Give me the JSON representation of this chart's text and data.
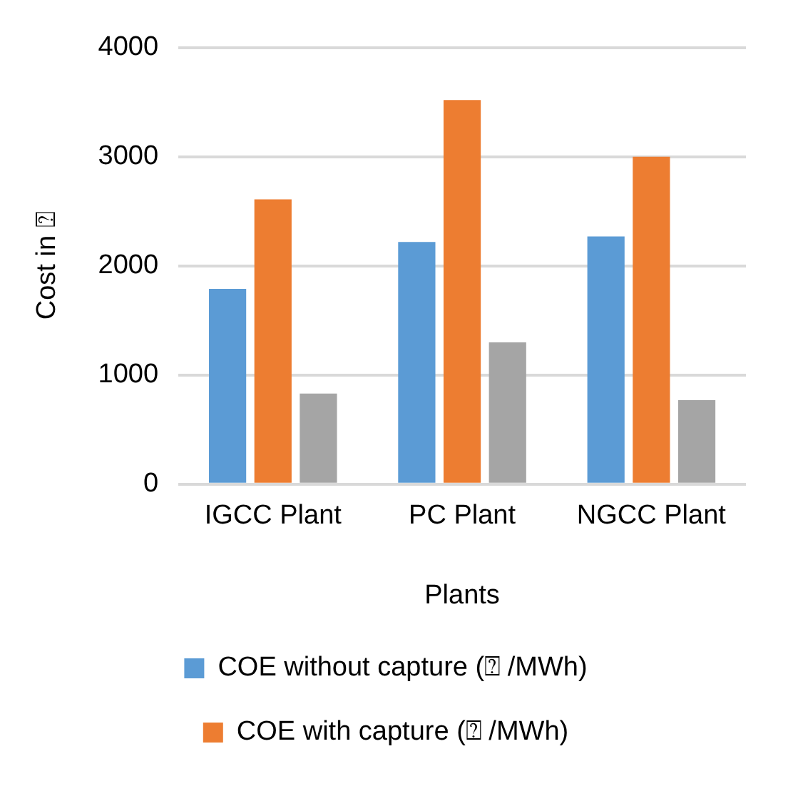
{
  "chart_data": {
    "type": "bar",
    "xlabel": "Plants",
    "ylabel": "Cost in ⍰",
    "categories": [
      "IGCC Plant",
      "PC Plant",
      "NGCC Plant"
    ],
    "series": [
      {
        "name": "COE without capture (⍰ /MWh)",
        "color": "#5b9bd5",
        "values": [
          1790,
          2220,
          2270
        ]
      },
      {
        "name": "COE with capture (⍰ /MWh)",
        "color": "#ed7d31",
        "values": [
          2610,
          3520,
          3000
        ]
      },
      {
        "color": "#a5a5a5",
        "values": [
          830,
          1300,
          770
        ]
      }
    ],
    "ylim": [
      0,
      4000
    ],
    "yticks": [
      0,
      1000,
      2000,
      3000,
      4000
    ],
    "grid": "y",
    "legend": "bottom"
  }
}
